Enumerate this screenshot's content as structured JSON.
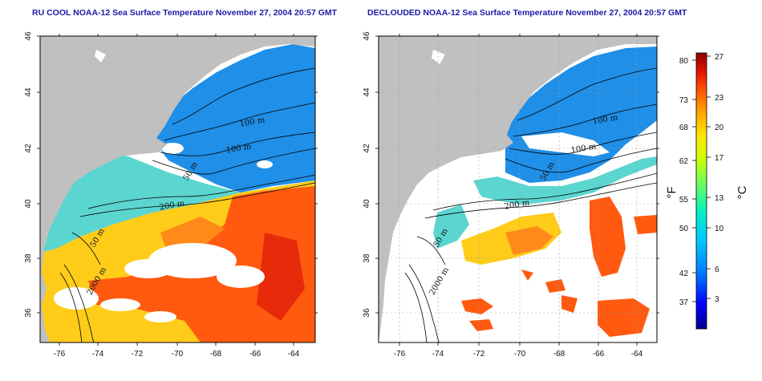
{
  "panels": [
    {
      "title": "RU COOL NOAA-12 Sea Surface Temperature November 27, 2004 20:57 GMT",
      "x_ticks": [
        "-76",
        "-74",
        "-72",
        "-70",
        "-68",
        "-66",
        "-64"
      ],
      "y_ticks": [
        "36",
        "38",
        "40",
        "42",
        "44",
        "46"
      ],
      "contour_labels": [
        "100 m",
        "100 m",
        "50 m",
        "200 m",
        "50 m",
        "2000 m"
      ]
    },
    {
      "title": "DECLOUDED NOAA-12 Sea Surface Temperature November 27, 2004 20:57 GMT",
      "x_ticks": [
        "-76",
        "-74",
        "-72",
        "-70",
        "-68",
        "-66",
        "-64"
      ],
      "y_ticks": [
        "36",
        "38",
        "40",
        "42",
        "44",
        "46"
      ],
      "contour_labels": [
        "100 m",
        "100 m",
        "50 m",
        "200 m",
        "50 m",
        "2000 m"
      ]
    }
  ],
  "colorbar": {
    "fahrenheit_labels": [
      "80",
      "73",
      "68",
      "62",
      "55",
      "50",
      "42",
      "37"
    ],
    "celsius_labels": [
      "27",
      "23",
      "20",
      "17",
      "13",
      "10",
      "6",
      "3"
    ],
    "fahrenheit_unit": "°F",
    "celsius_unit": "°C",
    "colors": [
      "#00008c",
      "#0000ff",
      "#0078ff",
      "#00c8ff",
      "#00f0c8",
      "#64ff64",
      "#d2ff00",
      "#ffe600",
      "#ffaa00",
      "#ff5a00",
      "#e61400",
      "#8c0000"
    ]
  },
  "colors": {
    "land": "#c0c0c0",
    "cloud": "#ffffff",
    "cold": "#1f8fe8",
    "mid": "#5bd5d0",
    "warm": "#ffcc1a",
    "hot": "#ff5a10",
    "title": "#1a1aa6"
  }
}
